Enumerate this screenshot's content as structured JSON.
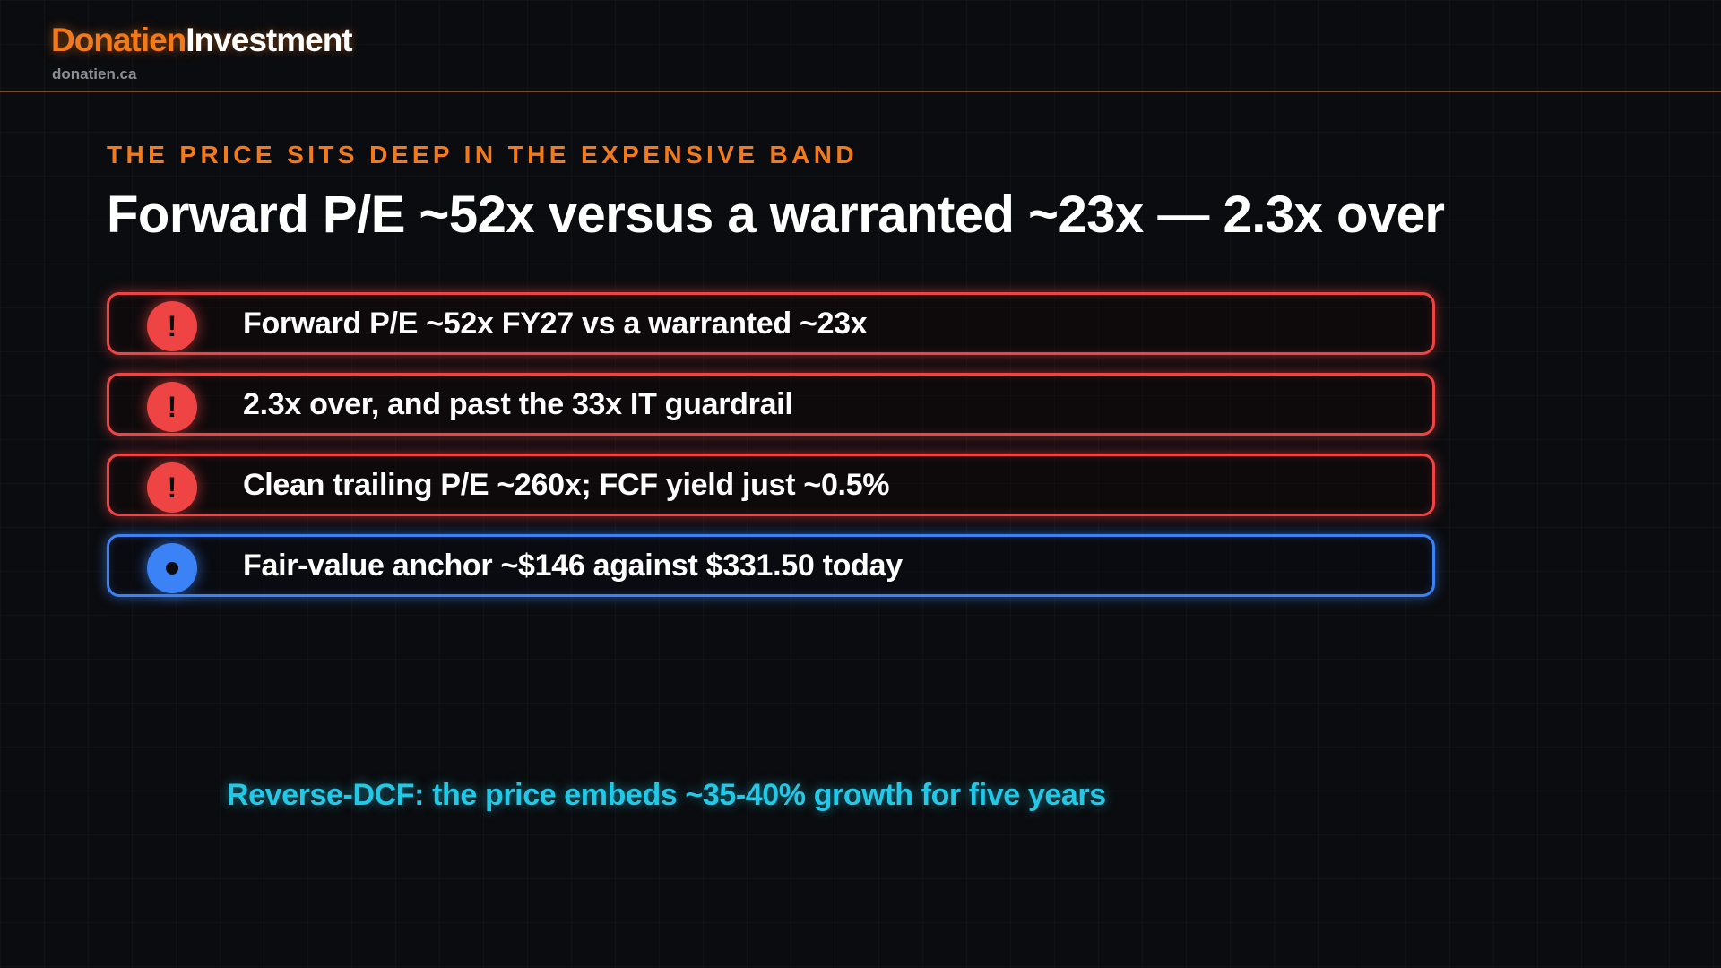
{
  "header": {
    "brand_part1": "Donatien",
    "brand_part2": "Investment",
    "site": "donatien.ca",
    "accent_color": "#f27a1a"
  },
  "slide": {
    "kicker": "THE PRICE SITS DEEP IN THE EXPENSIVE BAND",
    "title": "Forward P/E ~52x versus a warranted ~23x — 2.3x over",
    "points": [
      {
        "icon": "exclamation-icon",
        "badge": "!",
        "status": "warning",
        "color": "#ef4444",
        "text": "Forward P/E ~52x FY27 vs a warranted ~23x"
      },
      {
        "icon": "exclamation-icon",
        "badge": "!",
        "status": "warning",
        "color": "#ef4444",
        "text": "2.3x over, and past the 33x IT guardrail"
      },
      {
        "icon": "exclamation-icon",
        "badge": "!",
        "status": "warning",
        "color": "#ef4444",
        "text": "Clean trailing P/E ~260x; FCF yield just ~0.5%"
      },
      {
        "icon": "dot-icon",
        "badge": "",
        "status": "info",
        "color": "#3b82f6",
        "text": "Fair-value anchor ~$146 against $331.50 today"
      }
    ],
    "footnote": "Reverse-DCF: the price embeds ~35-40% growth for five years",
    "footnote_color": "#22c8e6"
  }
}
